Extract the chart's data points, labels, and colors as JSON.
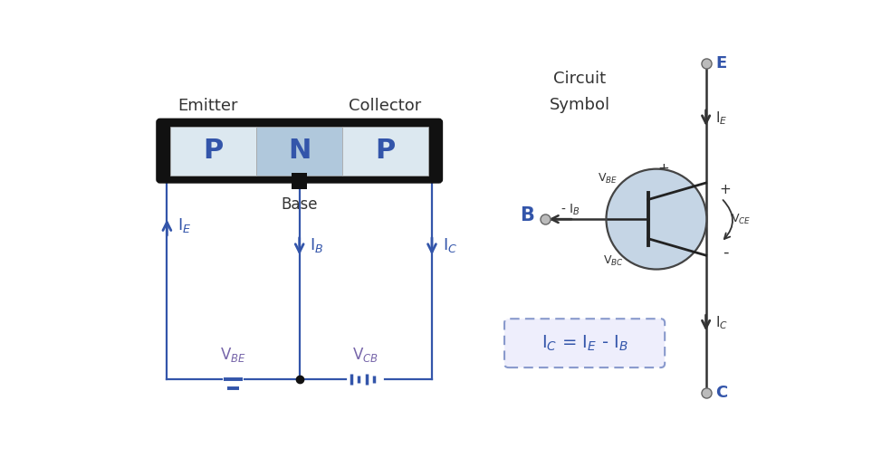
{
  "bg_color": "#ffffff",
  "blue_color": "#3355aa",
  "wire_blue": "#3355aa",
  "light_blue_P": "#dce8f0",
  "medium_blue_N": "#b0c8dc",
  "dark_gray": "#222222",
  "purple_color": "#7766aa",
  "transistor_circle_color": "#c5d5e5",
  "label_emitter": "Emitter",
  "label_collector": "Collector",
  "label_base": "Base",
  "label_E": "E",
  "label_B": "B",
  "label_C": "C",
  "circuit_symbol_title_1": "Circuit",
  "circuit_symbol_title_2": "Symbol"
}
